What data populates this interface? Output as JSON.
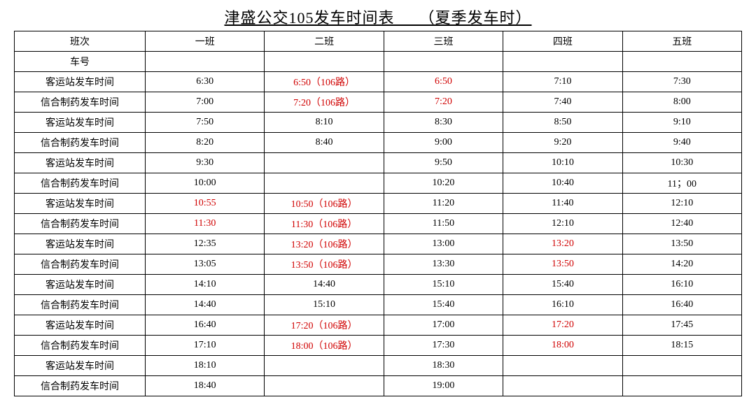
{
  "title": "津盛公交105发车时间表　　（夏季发车时）",
  "headers": [
    "班次",
    "一班",
    "二班",
    "三班",
    "四班",
    "五班"
  ],
  "rows": [
    {
      "label": "车号",
      "cells": [
        {
          "text": "",
          "red": false
        },
        {
          "text": "",
          "red": false
        },
        {
          "text": "",
          "red": false
        },
        {
          "text": "",
          "red": false
        },
        {
          "text": "",
          "red": false
        }
      ]
    },
    {
      "label": "客运站发车时间",
      "cells": [
        {
          "text": "6:30",
          "red": false
        },
        {
          "text": "6:50（106路）",
          "red": true
        },
        {
          "text": "6:50",
          "red": true
        },
        {
          "text": "7:10",
          "red": false
        },
        {
          "text": "7:30",
          "red": false
        }
      ]
    },
    {
      "label": "信合制药发车时间",
      "cells": [
        {
          "text": "7:00",
          "red": false
        },
        {
          "text": "7:20（106路）",
          "red": true
        },
        {
          "text": "7:20",
          "red": true
        },
        {
          "text": "7:40",
          "red": false
        },
        {
          "text": "8:00",
          "red": false
        }
      ]
    },
    {
      "label": "客运站发车时间",
      "cells": [
        {
          "text": "7:50",
          "red": false
        },
        {
          "text": "8:10",
          "red": false
        },
        {
          "text": "8:30",
          "red": false
        },
        {
          "text": "8:50",
          "red": false
        },
        {
          "text": "9:10",
          "red": false
        }
      ]
    },
    {
      "label": "信合制药发车时间",
      "cells": [
        {
          "text": "8:20",
          "red": false
        },
        {
          "text": "8:40",
          "red": false
        },
        {
          "text": "9:00",
          "red": false
        },
        {
          "text": "9:20",
          "red": false
        },
        {
          "text": "9:40",
          "red": false
        }
      ]
    },
    {
      "label": "客运站发车时间",
      "cells": [
        {
          "text": "9:30",
          "red": false
        },
        {
          "text": "",
          "red": false
        },
        {
          "text": "9:50",
          "red": false
        },
        {
          "text": "10:10",
          "red": false
        },
        {
          "text": "10:30",
          "red": false
        }
      ]
    },
    {
      "label": "信合制药发车时间",
      "cells": [
        {
          "text": "10:00",
          "red": false
        },
        {
          "text": "",
          "red": false
        },
        {
          "text": "10:20",
          "red": false
        },
        {
          "text": "10:40",
          "red": false
        },
        {
          "text": "11；00",
          "red": false
        }
      ]
    },
    {
      "label": "客运站发车时间",
      "cells": [
        {
          "text": "10:55",
          "red": true
        },
        {
          "text": "10:50（106路）",
          "red": true
        },
        {
          "text": "11:20",
          "red": false
        },
        {
          "text": "11:40",
          "red": false
        },
        {
          "text": "12:10",
          "red": false
        }
      ]
    },
    {
      "label": "信合制药发车时间",
      "cells": [
        {
          "text": "11:30",
          "red": true
        },
        {
          "text": "11:30（106路）",
          "red": true
        },
        {
          "text": "11:50",
          "red": false
        },
        {
          "text": "12:10",
          "red": false
        },
        {
          "text": "12:40",
          "red": false
        }
      ]
    },
    {
      "label": "客运站发车时间",
      "cells": [
        {
          "text": "12:35",
          "red": false
        },
        {
          "text": "13:20（106路）",
          "red": true
        },
        {
          "text": "13:00",
          "red": false
        },
        {
          "text": "13:20",
          "red": true
        },
        {
          "text": "13:50",
          "red": false
        }
      ]
    },
    {
      "label": "信合制药发车时间",
      "cells": [
        {
          "text": "13:05",
          "red": false
        },
        {
          "text": "13:50（106路）",
          "red": true
        },
        {
          "text": "13:30",
          "red": false
        },
        {
          "text": "13:50",
          "red": true
        },
        {
          "text": "14:20",
          "red": false
        }
      ]
    },
    {
      "label": "客运站发车时间",
      "cells": [
        {
          "text": "14:10",
          "red": false
        },
        {
          "text": "14:40",
          "red": false
        },
        {
          "text": "15:10",
          "red": false
        },
        {
          "text": "15:40",
          "red": false
        },
        {
          "text": "16:10",
          "red": false
        }
      ]
    },
    {
      "label": "信合制药发车时间",
      "cells": [
        {
          "text": "14:40",
          "red": false
        },
        {
          "text": "15:10",
          "red": false
        },
        {
          "text": "15:40",
          "red": false
        },
        {
          "text": "16:10",
          "red": false
        },
        {
          "text": "16:40",
          "red": false
        }
      ]
    },
    {
      "label": "客运站发车时间",
      "cells": [
        {
          "text": "16:40",
          "red": false
        },
        {
          "text": "17:20（106路）",
          "red": true
        },
        {
          "text": "17:00",
          "red": false
        },
        {
          "text": "17:20",
          "red": true
        },
        {
          "text": "17:45",
          "red": false
        }
      ]
    },
    {
      "label": "信合制药发车时间",
      "cells": [
        {
          "text": "17:10",
          "red": false
        },
        {
          "text": "18:00（106路）",
          "red": true
        },
        {
          "text": "17:30",
          "red": false
        },
        {
          "text": "18:00",
          "red": true
        },
        {
          "text": "18:15",
          "red": false
        }
      ]
    },
    {
      "label": "客运站发车时间",
      "cells": [
        {
          "text": "18:10",
          "red": false
        },
        {
          "text": "",
          "red": false
        },
        {
          "text": "18:30",
          "red": false
        },
        {
          "text": "",
          "red": false
        },
        {
          "text": "",
          "red": false
        }
      ]
    },
    {
      "label": "信合制药发车时间",
      "cells": [
        {
          "text": "18:40",
          "red": false
        },
        {
          "text": "",
          "red": false
        },
        {
          "text": "19:00",
          "red": false
        },
        {
          "text": "",
          "red": false
        },
        {
          "text": "",
          "red": false
        }
      ]
    }
  ]
}
